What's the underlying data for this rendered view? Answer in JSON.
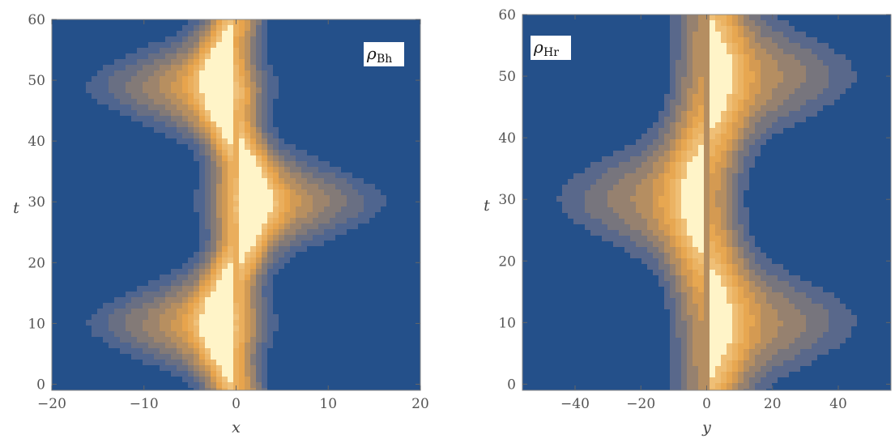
{
  "chart_data": [
    {
      "type": "contour",
      "panel": "left",
      "xlabel": "x",
      "ylabel": "t",
      "xlim": [
        -20,
        20
      ],
      "ylim": [
        -1,
        60
      ],
      "x_ticks": [
        -20,
        -10,
        0,
        10,
        20
      ],
      "x_tick_labels": [
        "−20",
        "−10",
        "0",
        "10",
        "20"
      ],
      "y_ticks": [
        0,
        10,
        20,
        30,
        40,
        50,
        60
      ],
      "y_tick_labels": [
        "0",
        "10",
        "20",
        "30",
        "40",
        "50",
        "60"
      ],
      "legend": {
        "symbol": "ρ",
        "subscript": "Bh",
        "placement": "top-right"
      },
      "contour_levels": 13,
      "colors": {
        "low": "#24508a",
        "mid": "#e6a24a",
        "high": "#fff4c8",
        "peak": "#ffffff"
      },
      "lobes": [
        {
          "t": 10,
          "side": "left",
          "x_extent": 20,
          "hot_x": -9
        },
        {
          "t": 30,
          "side": "right",
          "x_extent": 20,
          "hot_x": 10
        },
        {
          "t": 49,
          "side": "left",
          "x_extent": 20,
          "hot_x": -7
        }
      ]
    },
    {
      "type": "contour",
      "panel": "right",
      "xlabel": "y",
      "ylabel": "t",
      "xlim": [
        -56,
        56
      ],
      "ylim": [
        -1,
        60
      ],
      "x_ticks": [
        -40,
        -20,
        0,
        20,
        40
      ],
      "x_tick_labels": [
        "−40",
        "−20",
        "0",
        "20",
        "40"
      ],
      "y_ticks": [
        0,
        10,
        20,
        30,
        40,
        50,
        60
      ],
      "y_tick_labels": [
        "0",
        "10",
        "20",
        "30",
        "40",
        "50",
        "60"
      ],
      "legend": {
        "symbol": "ρ",
        "subscript": "Hr",
        "placement": "top-left"
      },
      "contour_levels": 11,
      "colors": {
        "low": "#24508a",
        "mid": "#e6a24a",
        "high": "#fff4c8"
      },
      "lobes": [
        {
          "t": 10,
          "side": "right",
          "hot_x": 18
        },
        {
          "t": 30,
          "side": "left",
          "hot_x": -22
        },
        {
          "t": 50,
          "side": "right",
          "hot_x": 18
        }
      ]
    }
  ]
}
